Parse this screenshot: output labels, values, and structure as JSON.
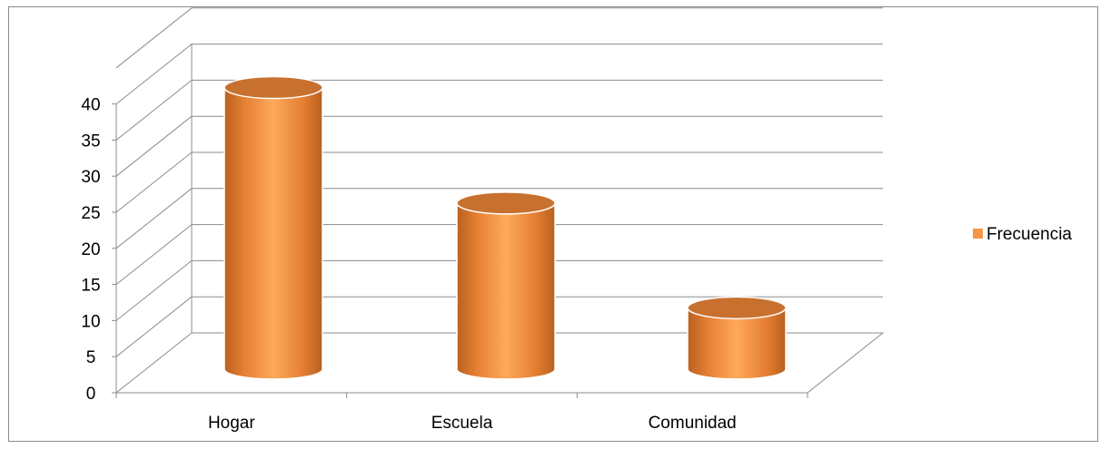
{
  "chart_data": {
    "type": "bar",
    "categories": [
      "Hogar",
      "Escuela",
      "Comunidad"
    ],
    "series": [
      {
        "name": "Frecuencia",
        "values": [
          39,
          23,
          8.5
        ]
      }
    ],
    "ylim": [
      0,
      40
    ],
    "yticks": [
      "0",
      "5",
      "10",
      "15",
      "20",
      "25",
      "30",
      "35",
      "40"
    ],
    "grid": true,
    "legend": "right",
    "colors": {
      "bar_body": "#f79646",
      "bar_dark": "#b9601f",
      "bar_highlight": "#ffbf80",
      "bar_top": "#c8712f",
      "gridline": "#8c8c8c"
    }
  }
}
